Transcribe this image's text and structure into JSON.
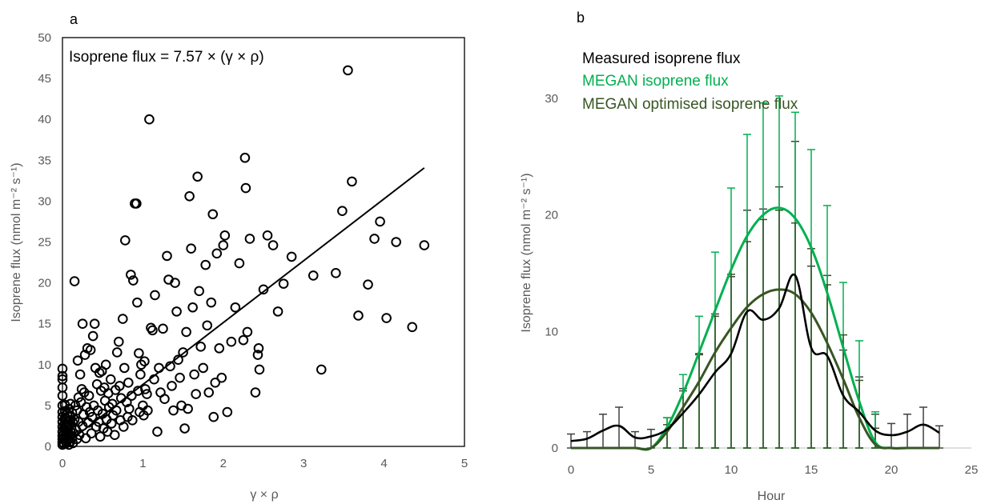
{
  "chart_data": [
    {
      "panel": "a",
      "type": "scatter",
      "title": "",
      "xlabel": "γ × ρ",
      "ylabel": "Isoprene flux (nmol m⁻² s⁻¹)",
      "xlim": [
        0,
        5
      ],
      "ylim": [
        0,
        50
      ],
      "xticks": [
        0,
        1,
        2,
        3,
        4,
        5
      ],
      "yticks": [
        0,
        5,
        10,
        15,
        20,
        25,
        30,
        35,
        40,
        45,
        50
      ],
      "annotation": "Isoprene flux = 7.57 × (γ × ρ)",
      "fit": {
        "slope": 7.57,
        "x_range": [
          0,
          4.5
        ]
      },
      "points": [
        [
          0.0,
          0.2
        ],
        [
          0.0,
          0.5
        ],
        [
          0.0,
          0.9
        ],
        [
          0.0,
          1.3
        ],
        [
          0.0,
          1.8
        ],
        [
          0.0,
          2.4
        ],
        [
          0.0,
          3.0
        ],
        [
          0.0,
          3.6
        ],
        [
          0.0,
          4.2
        ],
        [
          0.0,
          5.0
        ],
        [
          0.0,
          6.2
        ],
        [
          0.0,
          7.2
        ],
        [
          0.0,
          8.2
        ],
        [
          0.0,
          8.6
        ],
        [
          0.0,
          9.5
        ],
        [
          0.02,
          0.3
        ],
        [
          0.02,
          1.0
        ],
        [
          0.02,
          1.6
        ],
        [
          0.02,
          2.2
        ],
        [
          0.03,
          2.8
        ],
        [
          0.03,
          3.5
        ],
        [
          0.03,
          4.3
        ],
        [
          0.03,
          5.1
        ],
        [
          0.04,
          0.6
        ],
        [
          0.04,
          1.4
        ],
        [
          0.04,
          2.0
        ],
        [
          0.05,
          0.4
        ],
        [
          0.05,
          1.1
        ],
        [
          0.05,
          1.9
        ],
        [
          0.05,
          2.6
        ],
        [
          0.05,
          3.4
        ],
        [
          0.06,
          4.0
        ],
        [
          0.06,
          0.8
        ],
        [
          0.07,
          1.5
        ],
        [
          0.07,
          2.3
        ],
        [
          0.07,
          3.1
        ],
        [
          0.08,
          0.2
        ],
        [
          0.08,
          4.6
        ],
        [
          0.09,
          1.2
        ],
        [
          0.09,
          2.7
        ],
        [
          0.1,
          0.6
        ],
        [
          0.1,
          1.8
        ],
        [
          0.1,
          3.6
        ],
        [
          0.1,
          5.2
        ],
        [
          0.11,
          2.2
        ],
        [
          0.12,
          1.0
        ],
        [
          0.12,
          4.1
        ],
        [
          0.13,
          0.4
        ],
        [
          0.13,
          2.9
        ],
        [
          0.14,
          1.6
        ],
        [
          0.15,
          20.2
        ],
        [
          0.15,
          3.3
        ],
        [
          0.16,
          5.0
        ],
        [
          0.17,
          2.0
        ],
        [
          0.18,
          0.9
        ],
        [
          0.18,
          4.4
        ],
        [
          0.19,
          10.5
        ],
        [
          0.2,
          3.0
        ],
        [
          0.2,
          6.0
        ],
        [
          0.21,
          1.4
        ],
        [
          0.22,
          8.8
        ],
        [
          0.23,
          5.4
        ],
        [
          0.24,
          7.0
        ],
        [
          0.25,
          15.0
        ],
        [
          0.25,
          2.5
        ],
        [
          0.26,
          3.9
        ],
        [
          0.27,
          6.6
        ],
        [
          0.28,
          11.2
        ],
        [
          0.29,
          1.0
        ],
        [
          0.3,
          4.8
        ],
        [
          0.31,
          12.0
        ],
        [
          0.32,
          2.9
        ],
        [
          0.33,
          6.2
        ],
        [
          0.34,
          4.2
        ],
        [
          0.35,
          11.8
        ],
        [
          0.36,
          1.6
        ],
        [
          0.37,
          3.6
        ],
        [
          0.38,
          13.5
        ],
        [
          0.39,
          5.0
        ],
        [
          0.4,
          15.0
        ],
        [
          0.41,
          9.6
        ],
        [
          0.42,
          2.4
        ],
        [
          0.43,
          7.6
        ],
        [
          0.44,
          4.4
        ],
        [
          0.45,
          3.0
        ],
        [
          0.46,
          9.0
        ],
        [
          0.47,
          1.2
        ],
        [
          0.48,
          6.8
        ],
        [
          0.49,
          9.2
        ],
        [
          0.5,
          4.0
        ],
        [
          0.51,
          2.2
        ],
        [
          0.52,
          7.2
        ],
        [
          0.53,
          5.6
        ],
        [
          0.54,
          10.0
        ],
        [
          0.55,
          3.3
        ],
        [
          0.56,
          1.8
        ],
        [
          0.57,
          6.5
        ],
        [
          0.58,
          4.8
        ],
        [
          0.6,
          8.2
        ],
        [
          0.61,
          2.8
        ],
        [
          0.62,
          5.2
        ],
        [
          0.63,
          3.8
        ],
        [
          0.65,
          1.4
        ],
        [
          0.66,
          6.9
        ],
        [
          0.67,
          4.4
        ],
        [
          0.68,
          11.5
        ],
        [
          0.7,
          12.8
        ],
        [
          0.71,
          7.4
        ],
        [
          0.72,
          3.2
        ],
        [
          0.73,
          5.9
        ],
        [
          0.75,
          15.6
        ],
        [
          0.76,
          2.4
        ],
        [
          0.77,
          9.6
        ],
        [
          0.78,
          25.2
        ],
        [
          0.8,
          5.4
        ],
        [
          0.81,
          3.6
        ],
        [
          0.82,
          7.8
        ],
        [
          0.83,
          4.6
        ],
        [
          0.85,
          21.0
        ],
        [
          0.86,
          6.2
        ],
        [
          0.87,
          3.2
        ],
        [
          0.88,
          20.3
        ],
        [
          0.9,
          29.7
        ],
        [
          0.92,
          29.7
        ],
        [
          0.93,
          17.6
        ],
        [
          0.94,
          6.8
        ],
        [
          0.95,
          11.4
        ],
        [
          0.96,
          4.2
        ],
        [
          0.97,
          8.8
        ],
        [
          0.98,
          10.0
        ],
        [
          1.0,
          5.0
        ],
        [
          1.01,
          3.8
        ],
        [
          1.02,
          10.4
        ],
        [
          1.03,
          7.0
        ],
        [
          1.05,
          6.4
        ],
        [
          1.06,
          4.4
        ],
        [
          1.08,
          40.0
        ],
        [
          1.1,
          14.5
        ],
        [
          1.12,
          14.2
        ],
        [
          1.14,
          8.2
        ],
        [
          1.15,
          18.5
        ],
        [
          1.18,
          1.8
        ],
        [
          1.2,
          9.6
        ],
        [
          1.22,
          6.6
        ],
        [
          1.25,
          14.4
        ],
        [
          1.27,
          5.8
        ],
        [
          1.3,
          23.3
        ],
        [
          1.32,
          20.4
        ],
        [
          1.34,
          9.8
        ],
        [
          1.36,
          7.4
        ],
        [
          1.38,
          4.4
        ],
        [
          1.4,
          20.0
        ],
        [
          1.42,
          16.5
        ],
        [
          1.44,
          10.6
        ],
        [
          1.46,
          8.4
        ],
        [
          1.48,
          5.0
        ],
        [
          1.5,
          11.5
        ],
        [
          1.52,
          2.2
        ],
        [
          1.54,
          14.0
        ],
        [
          1.56,
          4.6
        ],
        [
          1.58,
          30.6
        ],
        [
          1.6,
          24.2
        ],
        [
          1.62,
          17.0
        ],
        [
          1.64,
          8.8
        ],
        [
          1.66,
          6.4
        ],
        [
          1.68,
          33.0
        ],
        [
          1.7,
          19.0
        ],
        [
          1.72,
          12.2
        ],
        [
          1.75,
          9.6
        ],
        [
          1.78,
          22.2
        ],
        [
          1.8,
          14.8
        ],
        [
          1.82,
          6.6
        ],
        [
          1.85,
          17.6
        ],
        [
          1.87,
          28.4
        ],
        [
          1.88,
          3.6
        ],
        [
          1.9,
          7.8
        ],
        [
          1.92,
          23.6
        ],
        [
          1.95,
          12.0
        ],
        [
          1.98,
          8.4
        ],
        [
          2.0,
          24.6
        ],
        [
          2.02,
          25.8
        ],
        [
          2.05,
          4.2
        ],
        [
          2.1,
          12.8
        ],
        [
          2.15,
          17.0
        ],
        [
          2.2,
          22.4
        ],
        [
          2.25,
          13.0
        ],
        [
          2.27,
          35.3
        ],
        [
          2.28,
          31.6
        ],
        [
          2.3,
          14.0
        ],
        [
          2.33,
          25.4
        ],
        [
          2.4,
          6.6
        ],
        [
          2.43,
          11.2
        ],
        [
          2.44,
          12.0
        ],
        [
          2.45,
          9.4
        ],
        [
          2.5,
          19.2
        ],
        [
          2.55,
          25.8
        ],
        [
          2.62,
          24.6
        ],
        [
          2.68,
          16.5
        ],
        [
          2.75,
          19.9
        ],
        [
          2.85,
          23.2
        ],
        [
          3.12,
          20.9
        ],
        [
          3.22,
          9.4
        ],
        [
          3.4,
          21.2
        ],
        [
          3.48,
          28.8
        ],
        [
          3.55,
          46.0
        ],
        [
          3.6,
          32.4
        ],
        [
          3.68,
          16.0
        ],
        [
          3.8,
          19.8
        ],
        [
          3.88,
          25.4
        ],
        [
          3.95,
          27.5
        ],
        [
          4.03,
          15.7
        ],
        [
          4.15,
          25.0
        ],
        [
          4.35,
          14.6
        ],
        [
          4.5,
          24.6
        ]
      ]
    },
    {
      "panel": "b",
      "type": "line",
      "title": "",
      "xlabel": "Hour",
      "ylabel": "Isoprene flux (nmol m⁻² s⁻¹)",
      "xlim": [
        0,
        25
      ],
      "ylim": [
        0,
        35
      ],
      "xticks": [
        0,
        5,
        10,
        15,
        20,
        25
      ],
      "yticks": [
        0,
        10,
        20,
        30
      ],
      "legend_position": "top-left",
      "series": [
        {
          "name": "Measured isoprene flux",
          "color": "#000000",
          "x": [
            0,
            1,
            2,
            3,
            4,
            5,
            6,
            7,
            8,
            9,
            10,
            11,
            12,
            13,
            14,
            15,
            16,
            17,
            18,
            19,
            20,
            21,
            22,
            23
          ],
          "y": [
            0.6,
            0.8,
            1.5,
            1.9,
            0.9,
            1.0,
            1.6,
            3.0,
            4.6,
            6.5,
            8.1,
            11.7,
            11.0,
            12.0,
            14.8,
            8.6,
            7.9,
            4.5,
            3.1,
            1.5,
            1.1,
            1.4,
            2.0,
            1.3
          ],
          "err_low": [
            0.6,
            0.8,
            1.5,
            1.9,
            0.9,
            1.0,
            1.6,
            3.0,
            4.6,
            6.5,
            8.1,
            11.7,
            11.0,
            12.0,
            14.8,
            8.6,
            7.9,
            4.5,
            3.1,
            1.5,
            1.1,
            1.4,
            2.0,
            1.3
          ],
          "err_high": [
            0.6,
            0.6,
            1.4,
            1.6,
            0.5,
            0.6,
            1.0,
            2.1,
            3.5,
            5.0,
            6.6,
            8.7,
            9.5,
            10.4,
            11.5,
            7.0,
            6.9,
            3.9,
            3.0,
            1.4,
            1.0,
            1.5,
            1.5,
            0.6
          ]
        },
        {
          "name": "MEGAN isoprene flux",
          "color": "#00b050",
          "x": [
            0,
            1,
            2,
            3,
            4,
            5,
            6,
            7,
            8,
            9,
            10,
            11,
            12,
            13,
            14,
            15,
            16,
            17,
            18,
            19,
            20,
            21,
            22,
            23
          ],
          "y": [
            0,
            0,
            0,
            0,
            0,
            0,
            1.8,
            4.7,
            8.2,
            11.8,
            15.3,
            18.2,
            20.0,
            20.6,
            19.7,
            17.2,
            13.3,
            8.6,
            4.0,
            0.5,
            0,
            0,
            0,
            0
          ],
          "err_low": [
            0,
            0,
            0,
            0,
            0,
            0,
            1.8,
            4.7,
            8.2,
            11.8,
            15.3,
            18.2,
            20.0,
            20.6,
            19.7,
            17.2,
            13.3,
            8.6,
            4.0,
            0.5,
            0,
            0,
            0,
            0
          ],
          "err_high": [
            0,
            0,
            0,
            0,
            0,
            0,
            0.8,
            1.6,
            3.1,
            5.0,
            7.0,
            8.7,
            9.6,
            9.6,
            9.1,
            8.4,
            7.5,
            5.6,
            5.2,
            2.6,
            0,
            0,
            0,
            0
          ]
        },
        {
          "name": "MEGAN optimised isoprene flux",
          "color": "#375623",
          "x": [
            0,
            1,
            2,
            3,
            4,
            5,
            6,
            7,
            8,
            9,
            10,
            11,
            12,
            13,
            14,
            15,
            16,
            17,
            18,
            19,
            20,
            21,
            22,
            23
          ],
          "y": [
            0,
            0,
            0,
            0,
            0,
            0,
            1.4,
            3.5,
            5.7,
            8.2,
            10.3,
            12.1,
            13.2,
            13.6,
            13.2,
            11.6,
            9.0,
            5.9,
            2.6,
            0.3,
            0,
            0,
            0,
            0
          ],
          "err_low": [
            0,
            0,
            0,
            0,
            0,
            0,
            1.4,
            3.5,
            5.7,
            8.2,
            10.3,
            12.1,
            13.2,
            13.6,
            13.2,
            11.6,
            9.0,
            5.9,
            2.6,
            0.3,
            0,
            0,
            0,
            0
          ],
          "err_high": [
            0,
            0,
            0,
            0,
            0,
            0,
            0.6,
            1.4,
            2.3,
            3.1,
            4.6,
            5.6,
            6.4,
            6.8,
            6.1,
            5.5,
            5.0,
            3.8,
            3.2,
            1.4,
            0,
            0,
            0,
            0
          ]
        }
      ]
    }
  ]
}
